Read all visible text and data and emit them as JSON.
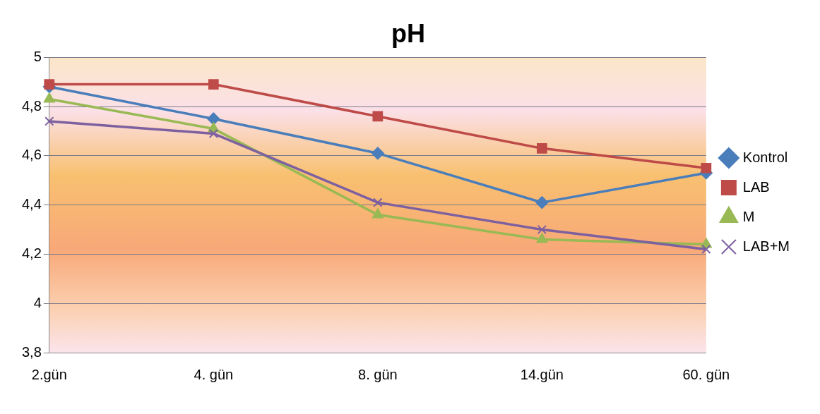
{
  "chart_data": {
    "type": "line",
    "title": "pH",
    "categories": [
      "2.gün",
      "4. gün",
      "8. gün",
      "14.gün",
      "60. gün"
    ],
    "series": [
      {
        "name": "Kontrol",
        "color": "#4a7ebb",
        "marker": "diamond",
        "values": [
          4.88,
          4.75,
          4.61,
          4.41,
          4.53
        ]
      },
      {
        "name": "LAB",
        "color": "#be4b48",
        "marker": "square",
        "values": [
          4.89,
          4.89,
          4.76,
          4.63,
          4.55
        ]
      },
      {
        "name": "M",
        "color": "#98b954",
        "marker": "triangle",
        "values": [
          4.83,
          4.71,
          4.36,
          4.26,
          4.24
        ]
      },
      {
        "name": "LAB+M",
        "color": "#7d60a0",
        "marker": "cross",
        "values": [
          4.74,
          4.69,
          4.41,
          4.3,
          4.22
        ]
      }
    ],
    "ylim": [
      3.8,
      5
    ],
    "yticks": [
      {
        "value": 3.8,
        "label": "3,8"
      },
      {
        "value": 4,
        "label": "4"
      },
      {
        "value": 4.2,
        "label": "4,2"
      },
      {
        "value": 4.4,
        "label": "4,4"
      },
      {
        "value": 4.6,
        "label": "4,6"
      },
      {
        "value": 4.8,
        "label": "4,8"
      },
      {
        "value": 5,
        "label": "5"
      }
    ],
    "grid": "y",
    "legend": "right"
  }
}
